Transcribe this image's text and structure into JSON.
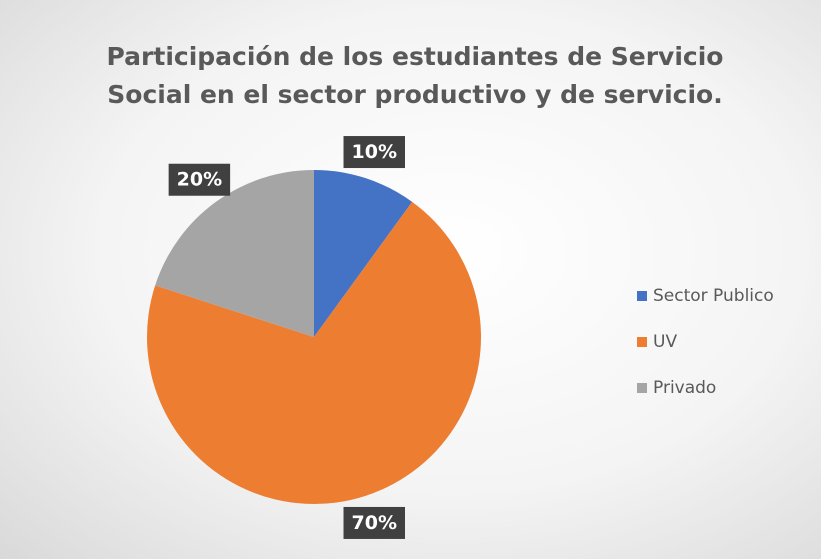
{
  "chart_data": {
    "type": "pie",
    "title": "Participación de los estudiantes de Servicio Social en el sector productivo y de servicio.",
    "categories": [
      "Sector Publico",
      "UV",
      "Privado"
    ],
    "values": [
      10,
      70,
      20
    ],
    "value_labels": [
      "10%",
      "70%",
      "20%"
    ],
    "colors": [
      "#4472c4",
      "#ed7d31",
      "#a5a5a5"
    ],
    "legend": "right"
  }
}
